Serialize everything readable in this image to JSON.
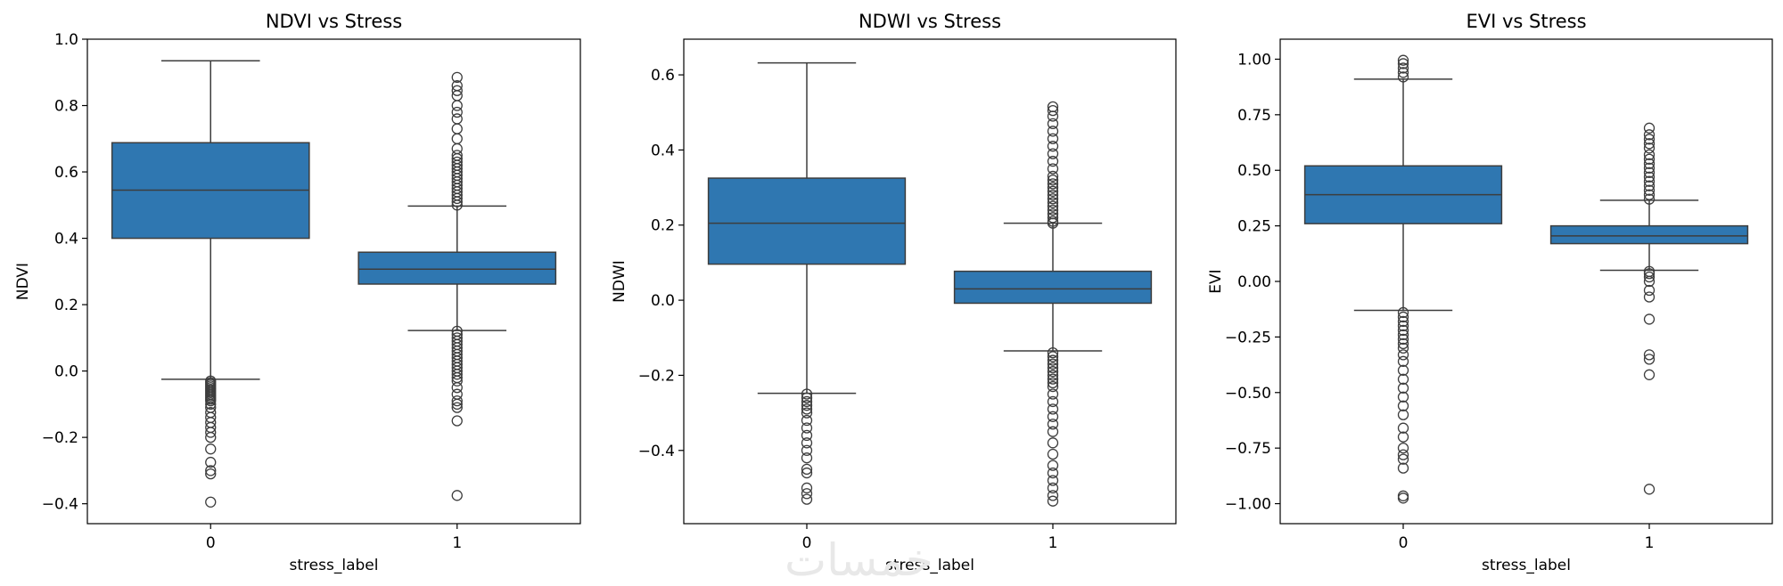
{
  "chart_data": [
    {
      "type": "box",
      "title": "NDVI vs Stress",
      "xlabel": "stress_label",
      "ylabel": "NDVI",
      "categories": [
        "0",
        "1"
      ],
      "ylim": [
        -0.46,
        1.0
      ],
      "yticks": [
        -0.4,
        -0.2,
        0.0,
        0.2,
        0.4,
        0.6,
        0.8,
        1.0
      ],
      "ytick_labels": [
        "−0.4",
        "−0.2",
        "0.0",
        "0.2",
        "0.4",
        "0.6",
        "0.8",
        "1.0"
      ],
      "color": "#2f77b1",
      "boxes": [
        {
          "category": "0",
          "whisker_low": -0.025,
          "q1": 0.4,
          "median": 0.545,
          "q3": 0.688,
          "whisker_high": 0.935,
          "outliers": [
            -0.03,
            -0.035,
            -0.04,
            -0.045,
            -0.05,
            -0.055,
            -0.06,
            -0.065,
            -0.07,
            -0.075,
            -0.08,
            -0.085,
            -0.09,
            -0.1,
            -0.11,
            -0.125,
            -0.14,
            -0.155,
            -0.17,
            -0.185,
            -0.2,
            -0.235,
            -0.275,
            -0.3,
            -0.31,
            -0.395
          ]
        },
        {
          "category": "1",
          "whisker_low": 0.122,
          "q1": 0.262,
          "median": 0.307,
          "q3": 0.358,
          "whisker_high": 0.497,
          "outliers": [
            0.5,
            0.51,
            0.52,
            0.53,
            0.54,
            0.55,
            0.56,
            0.57,
            0.58,
            0.59,
            0.6,
            0.61,
            0.62,
            0.63,
            0.64,
            0.65,
            0.67,
            0.7,
            0.73,
            0.76,
            0.78,
            0.8,
            0.83,
            0.845,
            0.86,
            0.885,
            0.12,
            0.11,
            0.1,
            0.09,
            0.08,
            0.07,
            0.06,
            0.05,
            0.04,
            0.03,
            0.02,
            0.01,
            0.0,
            -0.01,
            -0.02,
            -0.03,
            -0.05,
            -0.07,
            -0.09,
            -0.1,
            -0.11,
            -0.15,
            -0.375
          ]
        }
      ]
    },
    {
      "type": "box",
      "title": "NDWI vs Stress",
      "xlabel": "stress_label",
      "ylabel": "NDWI",
      "categories": [
        "0",
        "1"
      ],
      "ylim": [
        -0.595,
        0.695
      ],
      "yticks": [
        -0.4,
        -0.2,
        0.0,
        0.2,
        0.4,
        0.6
      ],
      "ytick_labels": [
        "−0.4",
        "−0.2",
        "0.0",
        "0.2",
        "0.4",
        "0.6"
      ],
      "color": "#2f77b1",
      "boxes": [
        {
          "category": "0",
          "whisker_low": -0.248,
          "q1": 0.096,
          "median": 0.205,
          "q3": 0.325,
          "whisker_high": 0.632,
          "outliers": [
            -0.25,
            -0.26,
            -0.27,
            -0.28,
            -0.29,
            -0.3,
            -0.32,
            -0.34,
            -0.36,
            -0.38,
            -0.4,
            -0.42,
            -0.45,
            -0.46,
            -0.5,
            -0.515,
            -0.53
          ]
        },
        {
          "category": "1",
          "whisker_low": -0.135,
          "q1": -0.008,
          "median": 0.03,
          "q3": 0.077,
          "whisker_high": 0.205,
          "outliers": [
            0.205,
            0.21,
            0.22,
            0.23,
            0.24,
            0.25,
            0.26,
            0.27,
            0.28,
            0.29,
            0.3,
            0.31,
            0.32,
            0.33,
            0.35,
            0.37,
            0.39,
            0.41,
            0.43,
            0.45,
            0.47,
            0.49,
            0.505,
            0.515,
            -0.14,
            -0.15,
            -0.16,
            -0.17,
            -0.18,
            -0.19,
            -0.2,
            -0.21,
            -0.22,
            -0.23,
            -0.25,
            -0.27,
            -0.29,
            -0.31,
            -0.33,
            -0.35,
            -0.38,
            -0.41,
            -0.44,
            -0.46,
            -0.48,
            -0.5,
            -0.52,
            -0.535
          ]
        }
      ]
    },
    {
      "type": "box",
      "title": "EVI vs Stress",
      "xlabel": "stress_label",
      "ylabel": "EVI",
      "categories": [
        "0",
        "1"
      ],
      "ylim": [
        -1.09,
        1.09
      ],
      "yticks": [
        -1.0,
        -0.75,
        -0.5,
        -0.25,
        0.0,
        0.25,
        0.5,
        0.75,
        1.0
      ],
      "ytick_labels": [
        "−1.00",
        "−0.75",
        "−0.50",
        "−0.25",
        "0.00",
        "0.25",
        "0.50",
        "0.75",
        "1.00"
      ],
      "color": "#2f77b1",
      "boxes": [
        {
          "category": "0",
          "whisker_low": -0.13,
          "q1": 0.26,
          "median": 0.39,
          "q3": 0.52,
          "whisker_high": 0.91,
          "outliers": [
            0.92,
            0.94,
            0.96,
            0.98,
            0.995,
            -0.14,
            -0.16,
            -0.18,
            -0.2,
            -0.22,
            -0.24,
            -0.26,
            -0.28,
            -0.3,
            -0.33,
            -0.36,
            -0.4,
            -0.44,
            -0.48,
            -0.52,
            -0.56,
            -0.6,
            -0.66,
            -0.7,
            -0.75,
            -0.78,
            -0.8,
            -0.84,
            -0.965,
            -0.975
          ]
        },
        {
          "category": "1",
          "whisker_low": 0.05,
          "q1": 0.17,
          "median": 0.205,
          "q3": 0.25,
          "whisker_high": 0.365,
          "outliers": [
            0.37,
            0.39,
            0.41,
            0.43,
            0.45,
            0.47,
            0.49,
            0.51,
            0.53,
            0.55,
            0.57,
            0.6,
            0.62,
            0.64,
            0.66,
            0.69,
            0.045,
            0.035,
            0.02,
            0.0,
            -0.04,
            -0.07,
            -0.17,
            -0.33,
            -0.35,
            -0.42,
            -0.935
          ]
        }
      ]
    }
  ],
  "watermark": "خمسات"
}
